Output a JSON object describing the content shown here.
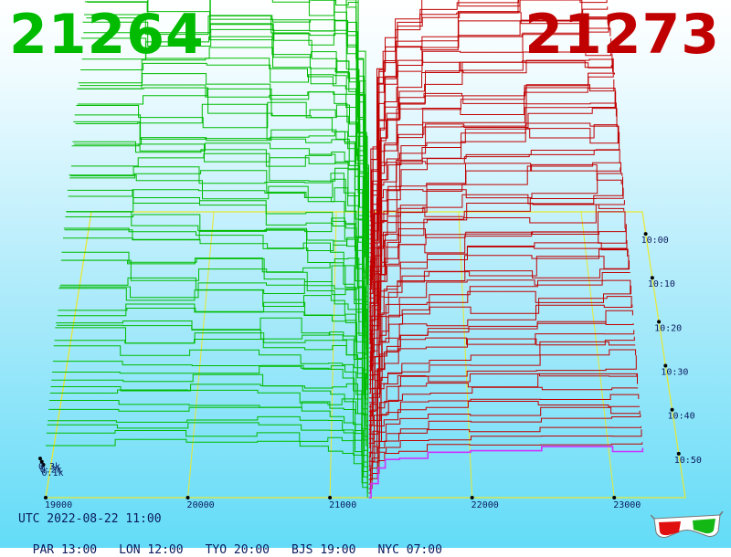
{
  "header": {
    "bid_price": "21264",
    "ask_price": "21273"
  },
  "colors": {
    "bid": "#00bb00",
    "ask": "#c00000",
    "grid": "#e8e830",
    "labels": "#0b1a5e",
    "now_ask": "#cc33ff"
  },
  "footer": {
    "utc_label": "UTC 2022-08-22 11:00",
    "zones": [
      "PAR 13:00",
      "LON 12:00",
      "TYO 20:00",
      "BJS 19:00",
      "NYC 07:00"
    ]
  },
  "icons": {
    "stereo": "3d-glasses-icon"
  },
  "chart_data": {
    "type": "area",
    "subtype": "3d-order-book-depth-history",
    "x_axis": {
      "ticks": [
        19000,
        20000,
        21000,
        22000,
        23000
      ],
      "range": [
        19000,
        23500
      ]
    },
    "z_axis": {
      "tick_labels": [
        "0.1k",
        "0.2k",
        "0.3k"
      ],
      "tick_values": [
        100,
        200,
        300
      ]
    },
    "time_axis": {
      "tick_labels": [
        "10:00",
        "10:10",
        "10:20",
        "10:30",
        "10:40",
        "10:50"
      ],
      "range": [
        "09:55",
        "11:00"
      ]
    },
    "series": [
      {
        "side": "bid",
        "x": [
          19000,
          19500,
          20000,
          20500,
          20800,
          21000,
          21100,
          21180,
          21240,
          21264
        ],
        "cum_volume": [
          330,
          325,
          320,
          312,
          305,
          300,
          280,
          200,
          60,
          0
        ]
      },
      {
        "side": "ask",
        "x": [
          21273,
          21300,
          21350,
          21400,
          21500,
          21700,
          22000,
          22500,
          23000,
          23200
        ],
        "cum_volume": [
          0,
          80,
          190,
          220,
          250,
          265,
          275,
          285,
          290,
          292
        ]
      }
    ]
  }
}
